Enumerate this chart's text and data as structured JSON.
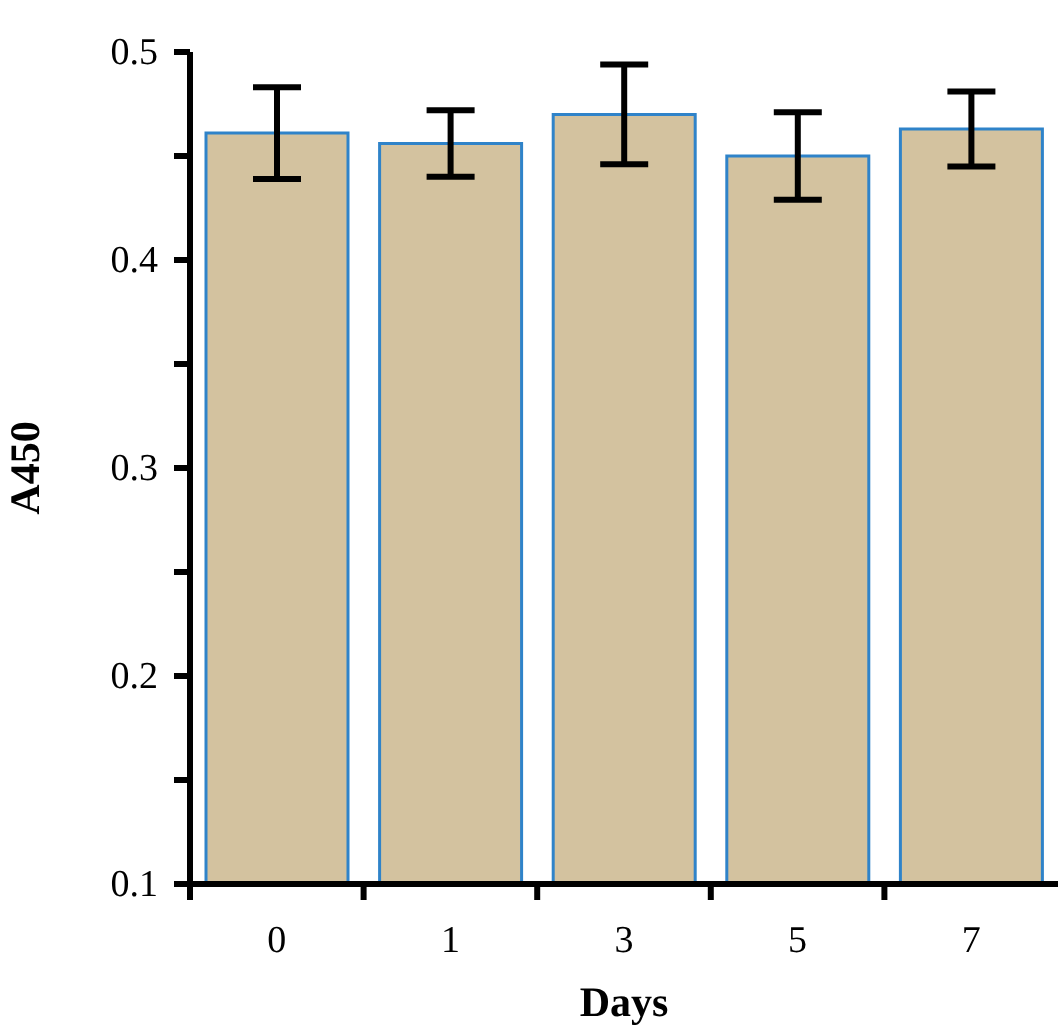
{
  "chart_data": {
    "type": "bar",
    "xlabel": "Days",
    "ylabel": "A450",
    "categories": [
      "0",
      "1",
      "3",
      "5",
      "7"
    ],
    "values": [
      0.461,
      0.456,
      0.47,
      0.45,
      0.463
    ],
    "errors": [
      0.022,
      0.016,
      0.024,
      0.021,
      0.018
    ],
    "color": "#d3c29f",
    "ylim": [
      0.1,
      0.5
    ],
    "yticks": [
      0.1,
      {
        "value": 0.15,
        "label": null
      },
      0.2,
      {
        "value": 0.25,
        "label": null
      },
      0.3,
      {
        "value": 0.35,
        "label": null
      },
      0.4,
      {
        "value": 0.45,
        "label": null
      },
      0.5
    ],
    "grid": false,
    "legend": false
  }
}
